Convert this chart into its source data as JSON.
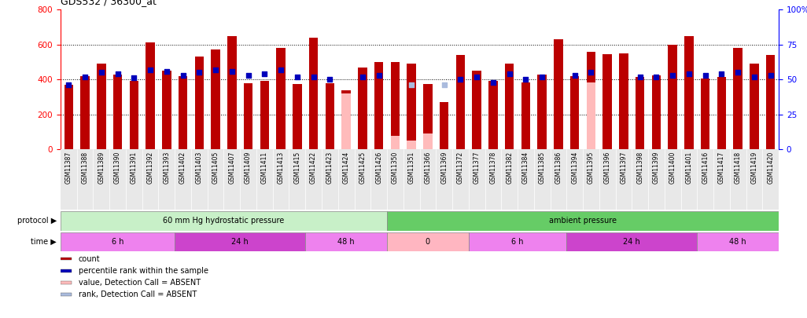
{
  "title": "GDS532 / 36300_at",
  "samples": [
    "GSM11387",
    "GSM11388",
    "GSM11389",
    "GSM11390",
    "GSM11391",
    "GSM11392",
    "GSM11393",
    "GSM11402",
    "GSM11403",
    "GSM11405",
    "GSM11407",
    "GSM11409",
    "GSM11411",
    "GSM11413",
    "GSM11415",
    "GSM11422",
    "GSM11423",
    "GSM11424",
    "GSM11425",
    "GSM11426",
    "GSM11350",
    "GSM11351",
    "GSM11366",
    "GSM11369",
    "GSM11372",
    "GSM11377",
    "GSM11378",
    "GSM11382",
    "GSM11384",
    "GSM11385",
    "GSM11386",
    "GSM11394",
    "GSM11395",
    "GSM11396",
    "GSM11397",
    "GSM11398",
    "GSM11399",
    "GSM11400",
    "GSM11401",
    "GSM11416",
    "GSM11417",
    "GSM11418",
    "GSM11419",
    "GSM11420"
  ],
  "counts": [
    370,
    420,
    490,
    430,
    390,
    610,
    450,
    420,
    530,
    570,
    650,
    380,
    390,
    580,
    375,
    640,
    380,
    340,
    470,
    500,
    500,
    490,
    375,
    270,
    540,
    450,
    390,
    490,
    385,
    430,
    630,
    420,
    560,
    545,
    550,
    415,
    425,
    600,
    650,
    405,
    415,
    580,
    490,
    540
  ],
  "ranks": [
    46,
    52,
    55,
    54,
    51,
    57,
    56,
    53,
    55,
    57,
    56,
    53,
    54,
    57,
    52,
    52,
    50,
    null,
    52,
    53,
    null,
    null,
    null,
    null,
    50,
    52,
    48,
    54,
    50,
    52,
    null,
    53,
    55,
    null,
    null,
    52,
    52,
    53,
    54,
    53,
    54,
    55,
    52,
    53
  ],
  "absent_value": [
    null,
    null,
    null,
    null,
    null,
    null,
    null,
    null,
    null,
    null,
    null,
    null,
    null,
    null,
    null,
    null,
    null,
    320,
    null,
    null,
    80,
    50,
    90,
    null,
    null,
    null,
    null,
    null,
    null,
    null,
    null,
    null,
    385,
    null,
    null,
    null,
    null,
    null,
    null,
    null,
    null,
    null,
    null,
    null
  ],
  "absent_rank": [
    null,
    null,
    null,
    null,
    null,
    null,
    null,
    null,
    null,
    null,
    null,
    null,
    null,
    null,
    null,
    null,
    null,
    null,
    null,
    null,
    null,
    46,
    null,
    46,
    null,
    null,
    null,
    null,
    null,
    null,
    null,
    null,
    null,
    null,
    null,
    null,
    null,
    null,
    null,
    null,
    null,
    null,
    null,
    null
  ],
  "protocol_groups": [
    {
      "label": "60 mm Hg hydrostatic pressure",
      "start": 0,
      "end": 20,
      "color": "#C8F0C8"
    },
    {
      "label": "ambient pressure",
      "start": 20,
      "end": 44,
      "color": "#66CC66"
    }
  ],
  "time_groups": [
    {
      "label": "6 h",
      "start": 0,
      "end": 7,
      "color": "#EE82EE"
    },
    {
      "label": "24 h",
      "start": 7,
      "end": 15,
      "color": "#CC44CC"
    },
    {
      "label": "48 h",
      "start": 15,
      "end": 20,
      "color": "#EE82EE"
    },
    {
      "label": "0",
      "start": 20,
      "end": 25,
      "color": "#FFB6C1"
    },
    {
      "label": "6 h",
      "start": 25,
      "end": 31,
      "color": "#EE82EE"
    },
    {
      "label": "24 h",
      "start": 31,
      "end": 39,
      "color": "#CC44CC"
    },
    {
      "label": "48 h",
      "start": 39,
      "end": 44,
      "color": "#EE82EE"
    }
  ],
  "bar_color": "#BB0000",
  "rank_color": "#0000BB",
  "absent_val_color": "#FFBBBB",
  "absent_rank_color": "#AABBDD",
  "ylim_left": [
    0,
    800
  ],
  "ylim_right": [
    0,
    100
  ],
  "yticks_left": [
    0,
    200,
    400,
    600,
    800
  ],
  "yticks_right": [
    0,
    25,
    50,
    75,
    100
  ],
  "legend_items": [
    {
      "label": "count",
      "color": "#BB0000"
    },
    {
      "label": "percentile rank within the sample",
      "color": "#0000BB"
    },
    {
      "label": "value, Detection Call = ABSENT",
      "color": "#FFBBBB"
    },
    {
      "label": "rank, Detection Call = ABSENT",
      "color": "#AABBDD"
    }
  ]
}
